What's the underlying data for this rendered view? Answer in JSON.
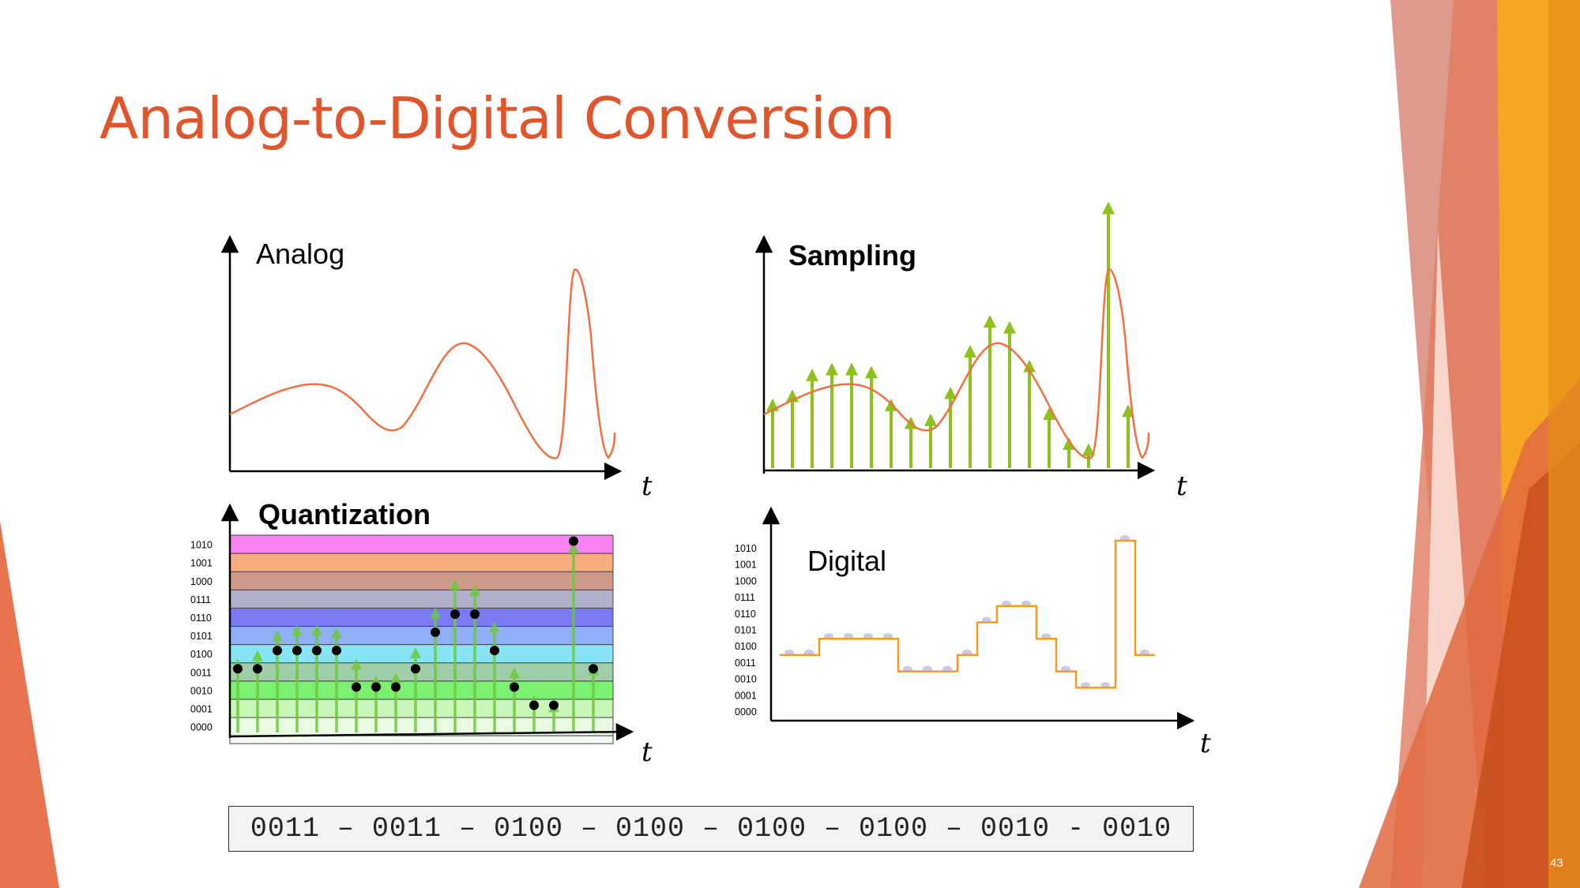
{
  "slide": {
    "title": "Analog-to-Digital Conversion",
    "number": "43",
    "code_sequence": "0011 – 0011 – 0100 – 0100 – 0100 – 0100 – 0010 - 0010"
  },
  "colors": {
    "title": "#e0552b",
    "signal": "#f07040",
    "sample_arrow": "#8cc21a",
    "digital_step": "#f59a1e",
    "digital_dot": "#c8c8ee"
  },
  "panels": {
    "analog": {
      "label": "Analog",
      "axis": "t"
    },
    "sampling": {
      "label": "Sampling",
      "axis": "t"
    },
    "quantization": {
      "label": "Quantization",
      "axis": "t"
    },
    "digital": {
      "label": "Digital",
      "axis": "t"
    }
  },
  "levels": [
    {
      "code": "0000",
      "color": "#e8fbe0"
    },
    {
      "code": "0001",
      "color": "#c9f7b8"
    },
    {
      "code": "0010",
      "color": "#7cf070"
    },
    {
      "code": "0011",
      "color": "#9ecfa8"
    },
    {
      "code": "0100",
      "color": "#86e4f5"
    },
    {
      "code": "0101",
      "color": "#8fb0f8"
    },
    {
      "code": "0110",
      "color": "#7a7af5"
    },
    {
      "code": "0111",
      "color": "#b0b0cc"
    },
    {
      "code": "1000",
      "color": "#d09a88"
    },
    {
      "code": "1001",
      "color": "#f8ad80"
    },
    {
      "code": "1010",
      "color": "#f882ee"
    }
  ],
  "samples": [
    2.3,
    2.6,
    3.3,
    3.5,
    3.5,
    3.4,
    2.3,
    1.7,
    1.8,
    2.7,
    4.1,
    5.1,
    4.9,
    3.6,
    2.0,
    1.0,
    0.8,
    8.9,
    2.1
  ],
  "quantized_levels": [
    3,
    3,
    4,
    4,
    4,
    4,
    2,
    2,
    2,
    3,
    5,
    6,
    6,
    4,
    2,
    1,
    1,
    10,
    3
  ]
}
